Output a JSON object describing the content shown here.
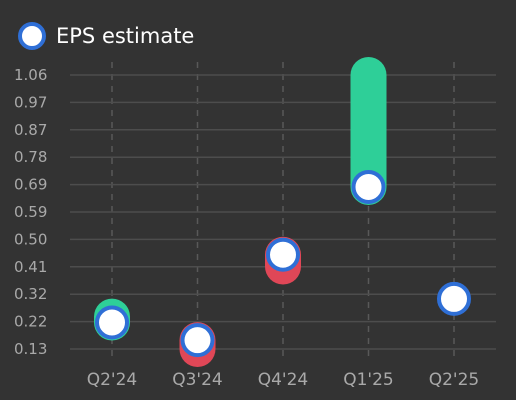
{
  "legend": {
    "label": "EPS estimate"
  },
  "colors": {
    "background": "#333333",
    "grid_horizontal": "#4d4d4d",
    "grid_vertical": "#595959",
    "beat": "#2ecf98",
    "miss": "#e04757",
    "estimate_fill": "#ffffff",
    "estimate_border": "#2f6fd6",
    "tick_text": "#a9a9a9"
  },
  "chart_data": {
    "type": "scatter",
    "title": "",
    "xlabel": "",
    "ylabel": "",
    "categories": [
      "Q2'24",
      "Q3'24",
      "Q4'24",
      "Q1'25",
      "Q2'25"
    ],
    "y_ticks": [
      "1.06",
      "0.97",
      "0.87",
      "0.78",
      "0.69",
      "0.59",
      "0.50",
      "0.41",
      "0.32",
      "0.22",
      "0.13"
    ],
    "ylim": [
      0.13,
      1.06
    ],
    "grid": true,
    "legend_position": "top-left",
    "series": [
      {
        "name": "EPS estimate",
        "values": [
          0.22,
          0.16,
          0.45,
          0.68,
          0.3
        ]
      },
      {
        "values": [
          0.24,
          0.13,
          0.41,
          1.06,
          null
        ]
      }
    ]
  }
}
